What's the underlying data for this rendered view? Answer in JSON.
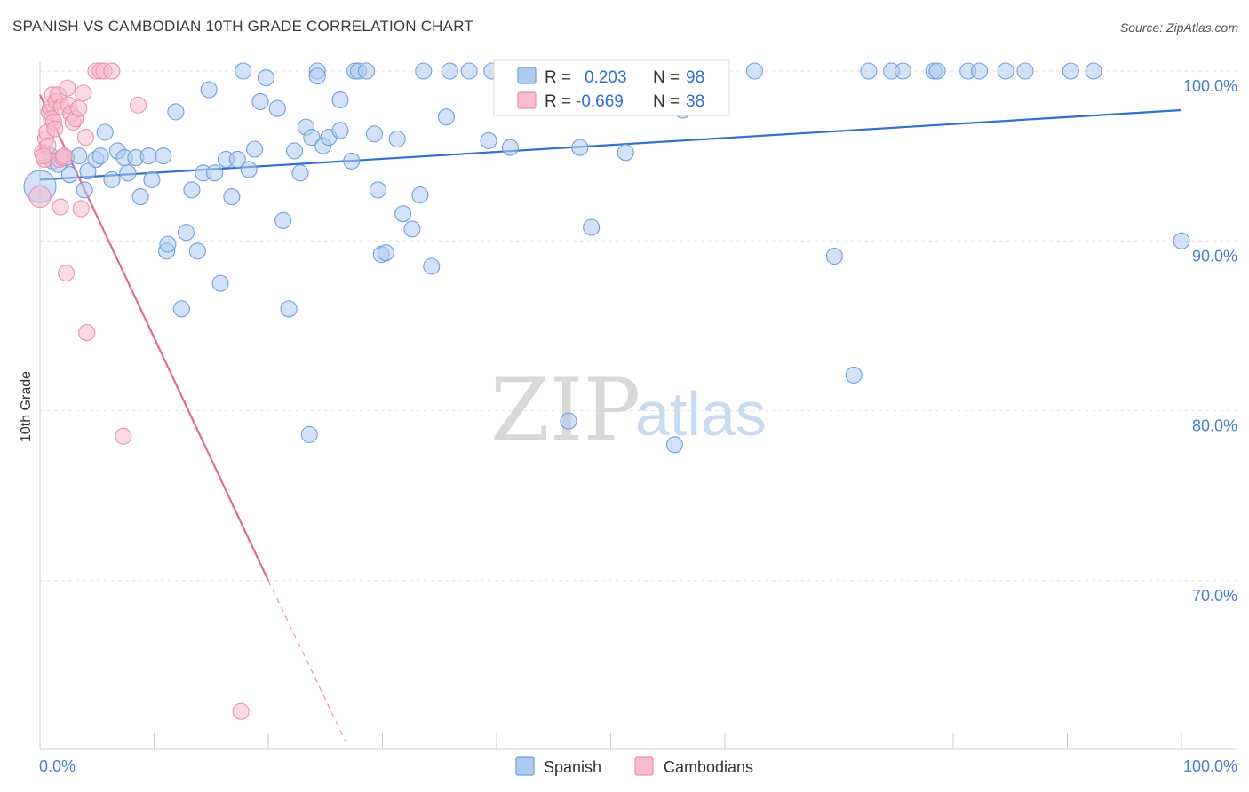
{
  "title": "SPANISH VS CAMBODIAN 10TH GRADE CORRELATION CHART",
  "source": "Source: ZipAtlas.com",
  "watermark": {
    "zip": "ZIP",
    "atlas": "atlas"
  },
  "stats": {
    "r_label": "R =",
    "n_label": "N =",
    "spanish": {
      "r": "0.203",
      "n": "98"
    },
    "cambodians": {
      "r": "-0.669",
      "n": "38"
    }
  },
  "colors": {
    "spanish_fill": "#aecbf0",
    "spanish_stroke": "#6f9fdc",
    "spanish_line": "#2f72cf",
    "cambodians_fill": "#f7bccd",
    "cambodians_stroke": "#ec8fab",
    "cambodians_line": "#e2679a",
    "tick_text": "#4a7fc8",
    "grid": "#e2e2e2"
  },
  "chart_data": {
    "type": "scatter",
    "title": "SPANISH VS CAMBODIAN 10TH GRADE CORRELATION CHART",
    "xlabel": "",
    "ylabel": "10th Grade",
    "xlim": [
      0,
      100
    ],
    "ylim": [
      60.5,
      100.8
    ],
    "x_tick_labels": [
      "0.0%",
      "100.0%"
    ],
    "y_ticks": [
      70,
      80,
      90,
      100
    ],
    "y_tick_labels": [
      "70.0%",
      "80.0%",
      "90.0%",
      "100.0%"
    ],
    "grid": true,
    "legend": "bottom-center",
    "series": [
      {
        "name": "Spanish",
        "trend": {
          "x": [
            0,
            100
          ],
          "y": [
            93.6,
            97.7
          ]
        },
        "points": [
          [
            0.0,
            93.2
          ],
          [
            0.9,
            95.0
          ],
          [
            1.1,
            94.7
          ],
          [
            1.6,
            94.5
          ],
          [
            2.3,
            94.9
          ],
          [
            2.6,
            93.9
          ],
          [
            3.4,
            95.0
          ],
          [
            3.9,
            93.0
          ],
          [
            4.2,
            94.1
          ],
          [
            4.9,
            94.8
          ],
          [
            5.3,
            95.0
          ],
          [
            5.7,
            96.4
          ],
          [
            6.3,
            93.6
          ],
          [
            6.8,
            95.3
          ],
          [
            7.4,
            94.9
          ],
          [
            7.7,
            94.0
          ],
          [
            8.4,
            94.9
          ],
          [
            8.8,
            92.6
          ],
          [
            9.5,
            95.0
          ],
          [
            9.8,
            93.6
          ],
          [
            10.8,
            95.0
          ],
          [
            11.1,
            89.4
          ],
          [
            11.2,
            89.8
          ],
          [
            11.9,
            97.6
          ],
          [
            12.4,
            86.0
          ],
          [
            12.8,
            90.5
          ],
          [
            13.3,
            93.0
          ],
          [
            13.8,
            89.4
          ],
          [
            14.3,
            94.0
          ],
          [
            14.8,
            98.9
          ],
          [
            15.3,
            94.0
          ],
          [
            15.8,
            87.5
          ],
          [
            16.3,
            94.8
          ],
          [
            16.8,
            92.6
          ],
          [
            17.3,
            94.8
          ],
          [
            17.8,
            100.0
          ],
          [
            18.3,
            94.2
          ],
          [
            18.8,
            95.4
          ],
          [
            19.3,
            98.2
          ],
          [
            19.8,
            99.6
          ],
          [
            20.8,
            97.8
          ],
          [
            21.3,
            91.2
          ],
          [
            21.8,
            86.0
          ],
          [
            22.3,
            95.3
          ],
          [
            22.8,
            94.0
          ],
          [
            23.3,
            96.7
          ],
          [
            23.6,
            78.6
          ],
          [
            23.8,
            96.1
          ],
          [
            24.3,
            100.0
          ],
          [
            24.3,
            99.7
          ],
          [
            24.8,
            95.6
          ],
          [
            25.3,
            96.1
          ],
          [
            26.3,
            96.5
          ],
          [
            26.3,
            98.3
          ],
          [
            27.3,
            94.7
          ],
          [
            27.6,
            100.0
          ],
          [
            27.9,
            100.0
          ],
          [
            28.6,
            100.0
          ],
          [
            29.3,
            96.3
          ],
          [
            29.6,
            93.0
          ],
          [
            29.9,
            89.2
          ],
          [
            30.3,
            89.3
          ],
          [
            31.3,
            96.0
          ],
          [
            31.8,
            91.6
          ],
          [
            32.6,
            90.7
          ],
          [
            33.3,
            92.7
          ],
          [
            33.6,
            100.0
          ],
          [
            34.3,
            88.5
          ],
          [
            35.6,
            97.3
          ],
          [
            35.9,
            100.0
          ],
          [
            37.6,
            100.0
          ],
          [
            39.3,
            95.9
          ],
          [
            39.6,
            100.0
          ],
          [
            41.2,
            95.5
          ],
          [
            43.1,
            100.0
          ],
          [
            46.3,
            79.4
          ],
          [
            47.3,
            95.5
          ],
          [
            48.3,
            90.8
          ],
          [
            51.3,
            95.2
          ],
          [
            55.6,
            78.0
          ],
          [
            56.3,
            97.7
          ],
          [
            57.0,
            100.0
          ],
          [
            58.3,
            100.0
          ],
          [
            62.6,
            100.0
          ],
          [
            69.6,
            89.1
          ],
          [
            71.3,
            82.1
          ],
          [
            72.6,
            100.0
          ],
          [
            74.6,
            100.0
          ],
          [
            75.6,
            100.0
          ],
          [
            78.3,
            100.0
          ],
          [
            78.6,
            100.0
          ],
          [
            81.3,
            100.0
          ],
          [
            82.3,
            100.0
          ],
          [
            84.6,
            100.0
          ],
          [
            86.3,
            100.0
          ],
          [
            90.3,
            100.0
          ],
          [
            92.3,
            100.0
          ],
          [
            100.0,
            90.0
          ]
        ]
      },
      {
        "name": "Cambodians",
        "trend": {
          "x": [
            0,
            20
          ],
          "y": [
            98.6,
            70.0
          ]
        },
        "trend_dashed": {
          "x": [
            20,
            26.8
          ],
          "y": [
            70.0,
            60.5
          ]
        },
        "points": [
          [
            0.0,
            92.6
          ],
          [
            0.2,
            95.2
          ],
          [
            0.4,
            94.8
          ],
          [
            0.5,
            96.0
          ],
          [
            0.6,
            96.4
          ],
          [
            0.7,
            95.6
          ],
          [
            0.8,
            97.6
          ],
          [
            0.9,
            97.8
          ],
          [
            1.0,
            97.2
          ],
          [
            1.1,
            98.6
          ],
          [
            1.2,
            97.0
          ],
          [
            1.3,
            96.6
          ],
          [
            1.4,
            98.2
          ],
          [
            1.6,
            98.6
          ],
          [
            1.7,
            94.8
          ],
          [
            1.8,
            92.0
          ],
          [
            1.9,
            97.9
          ],
          [
            2.0,
            94.9
          ],
          [
            2.1,
            95.0
          ],
          [
            2.3,
            88.1
          ],
          [
            2.4,
            99.0
          ],
          [
            2.5,
            98.0
          ],
          [
            2.7,
            97.5
          ],
          [
            2.9,
            97.0
          ],
          [
            3.1,
            97.2
          ],
          [
            3.4,
            97.8
          ],
          [
            3.6,
            91.9
          ],
          [
            3.8,
            98.7
          ],
          [
            4.0,
            96.1
          ],
          [
            4.1,
            84.6
          ],
          [
            4.9,
            100.0
          ],
          [
            5.3,
            100.0
          ],
          [
            5.6,
            100.0
          ],
          [
            6.3,
            100.0
          ],
          [
            7.3,
            78.5
          ],
          [
            8.6,
            98.0
          ],
          [
            17.6,
            62.3
          ],
          [
            0.3,
            95.0
          ]
        ]
      }
    ]
  },
  "legend": {
    "spanish": "Spanish",
    "cambodians": "Cambodians"
  }
}
